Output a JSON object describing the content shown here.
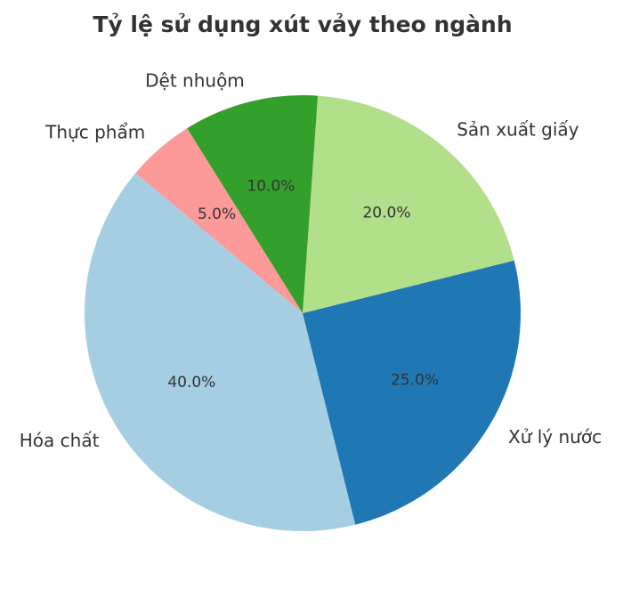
{
  "chart_data": {
    "type": "pie",
    "title": "Tỷ lệ sử dụng xút vảy theo ngành",
    "categories": [
      "Hóa chất",
      "Xử lý nước",
      "Sản xuất giấy",
      "Dệt nhuộm",
      "Thực phẩm"
    ],
    "values": [
      40,
      25,
      20,
      10,
      5
    ],
    "percent_labels": [
      "40.0%",
      "25.0%",
      "20.0%",
      "10.0%",
      "5.0%"
    ],
    "colors": [
      "#a6cee3",
      "#1f78b4",
      "#b2df8a",
      "#33a02c",
      "#fb9a99"
    ],
    "start_angle_deg": 140,
    "direction": "counterclockwise"
  }
}
